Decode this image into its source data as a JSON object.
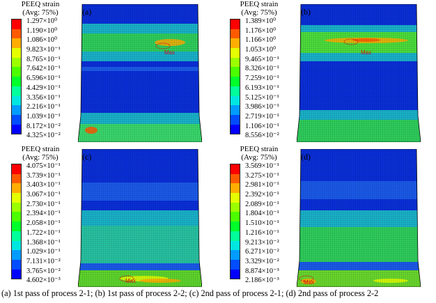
{
  "legend_title_line1": "PEEQ strain",
  "legend_title_line2": "(Avg: 75%)",
  "max_label": "Max",
  "colors": [
    "#ff0000",
    "#ff5a00",
    "#ffae00",
    "#e5ff00",
    "#9cff00",
    "#4cff00",
    "#00ff2a",
    "#00ff9a",
    "#00e6e0",
    "#009cff",
    "#004cff",
    "#0000ff"
  ],
  "panels": [
    {
      "label": "(a)",
      "ticks": [
        "1.297×10⁰",
        "1.190×10⁰",
        "1.086×10⁰",
        "9.823×10⁻¹",
        "8.765×10⁻¹",
        "7.642×10⁻¹",
        "6.596×10⁻¹",
        "4.429×10⁻¹",
        "3.356×10⁻¹",
        "2.216×10⁻¹",
        "1.039×10⁻¹",
        "8.172×10⁻²",
        "4.325×10⁻²"
      ]
    },
    {
      "label": "(b)",
      "ticks": [
        "1.389×10⁰",
        "1.176×10⁰",
        "1.166×10⁰",
        "1.053×10⁰",
        "9.465×10⁻¹",
        "8.326×10⁻¹",
        "7.259×10⁻¹",
        "6.193×10⁻¹",
        "5.125×10⁻¹",
        "3.986×10⁻¹",
        "2.719×10⁻¹",
        "1.106×10⁻¹",
        "8.556×10⁻²"
      ]
    },
    {
      "label": "(c)",
      "ticks": [
        "4.075×10⁻¹",
        "3.739×10⁻¹",
        "3.403×10⁻¹",
        "3.067×10⁻¹",
        "2.730×10⁻¹",
        "2.394×10⁻¹",
        "2.058×10⁻¹",
        "1.722×10⁻¹",
        "1.368×10⁻¹",
        "1.029×10⁻¹",
        "7.131×10⁻²",
        "3.765×10⁻²",
        "4.602×10⁻³"
      ]
    },
    {
      "label": "(d)",
      "ticks": [
        "3.569×10⁻¹",
        "3.275×10⁻¹",
        "2.981×10⁻¹",
        "2.392×10⁻¹",
        "2.089×10⁻¹",
        "1.804×10⁻¹",
        "1.510×10⁻¹",
        "1.216×10⁻¹",
        "9.213×10⁻²",
        "6.271×10⁻²",
        "3.329×10⁻²",
        "8.874×10⁻³",
        "2.186×10⁻³"
      ]
    }
  ],
  "caption": "(a) 1st pass of process 2-1; (b) 1st pass of process 2-2; (c) 2nd pass of process 2-1; (d) 2nd pass of process 2-2"
}
